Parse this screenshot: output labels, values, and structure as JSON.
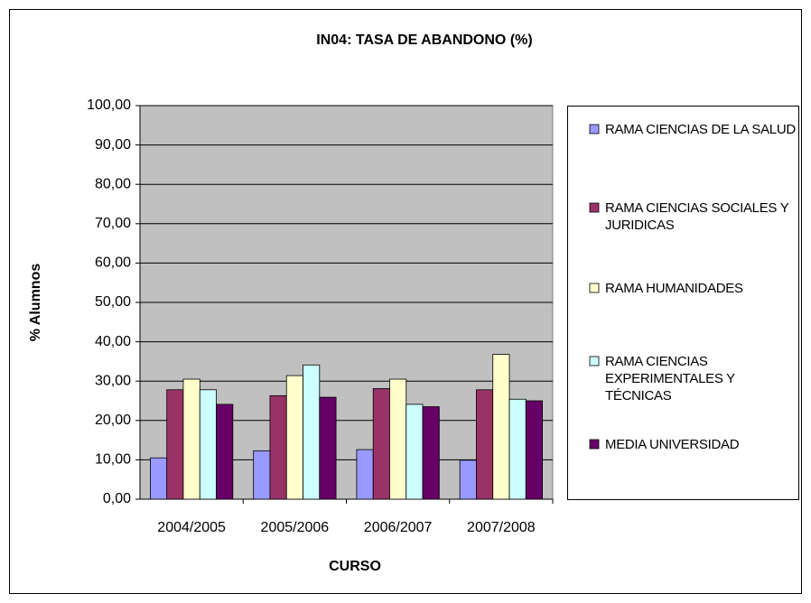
{
  "chart_data": {
    "type": "bar",
    "title": "IN04: TASA DE ABANDONO  (%)",
    "x_label": "CURSO",
    "y_label": "% Alumnos",
    "categories": [
      "2004/2005",
      "2005/2006",
      "2006/2007",
      "2007/2008"
    ],
    "series": [
      {
        "name": "RAMA CIENCIAS DE LA SALUD",
        "color": "#9999ff",
        "values": [
          10.5,
          12.3,
          12.6,
          9.9
        ]
      },
      {
        "name": "RAMA CIENCIAS SOCIALES Y JURIDICAS",
        "color": "#993366",
        "values": [
          27.8,
          26.3,
          28.1,
          27.8
        ]
      },
      {
        "name": "RAMA HUMANIDADES",
        "color": "#ffffcc",
        "values": [
          30.5,
          31.4,
          30.5,
          36.8
        ]
      },
      {
        "name": "RAMA CIENCIAS EXPERIMENTALES Y TÉCNICAS",
        "color": "#ccffff",
        "values": [
          27.8,
          34.1,
          24.1,
          25.4
        ]
      },
      {
        "name": "MEDIA UNIVERSIDAD",
        "color": "#660066",
        "values": [
          24.1,
          25.9,
          23.5,
          25.0
        ]
      }
    ],
    "ylim": [
      0,
      100
    ],
    "yticks": [
      {
        "value": 0,
        "label": "0,00"
      },
      {
        "value": 10,
        "label": "10,00"
      },
      {
        "value": 20,
        "label": "20,00"
      },
      {
        "value": 30,
        "label": "30,00"
      },
      {
        "value": 40,
        "label": "40,00"
      },
      {
        "value": 50,
        "label": "50,00"
      },
      {
        "value": 60,
        "label": "60,00"
      },
      {
        "value": 70,
        "label": "70,00"
      },
      {
        "value": 80,
        "label": "80,00"
      },
      {
        "value": 90,
        "label": "90,00"
      },
      {
        "value": 100,
        "label": "100,00"
      }
    ],
    "grid": true,
    "legend": "right"
  }
}
